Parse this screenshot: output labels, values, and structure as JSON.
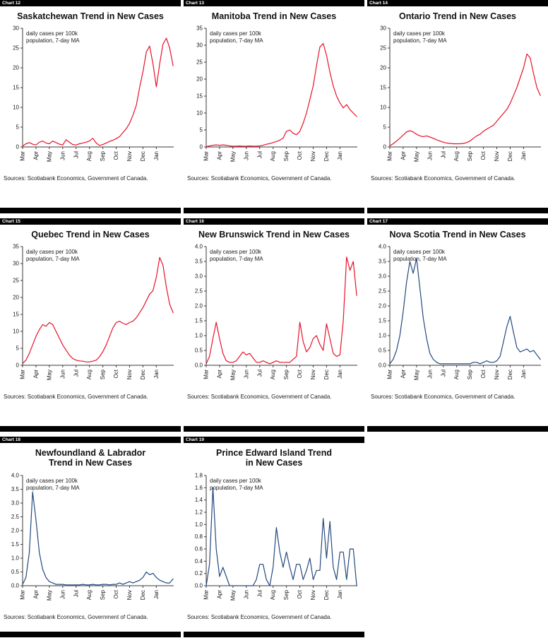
{
  "annotation": [
    "daily cases per 100k",
    "population, 7-day MA"
  ],
  "months": [
    "Mar",
    "Apr",
    "May",
    "Jun",
    "Jul",
    "Aug",
    "Sep",
    "Oct",
    "Nov",
    "Dec",
    "Jan"
  ],
  "colors": {
    "red": "#e8112a",
    "blue": "#24487f"
  },
  "chart_data": [
    {
      "type": "line",
      "chart_label": "Chart 12",
      "title": "Saskatchewan Trend in New Cases",
      "annotation": [
        "daily cases per 100k",
        "population, 7-day MA"
      ],
      "sources": "Sources: Scotiabank Economics, Government of Canada.",
      "color": "#e8112a",
      "ylim": [
        0,
        30
      ],
      "yticks": [
        0,
        5,
        10,
        15,
        20,
        25,
        30
      ],
      "ytick_labels": [
        "0",
        "5",
        "10",
        "15",
        "20",
        "25",
        "30"
      ],
      "x_months": [
        "Mar",
        "Apr",
        "May",
        "Jun",
        "Jul",
        "Aug",
        "Sep",
        "Oct",
        "Nov",
        "Dec",
        "Jan"
      ],
      "x_range": [
        0,
        11.3
      ],
      "x_start": 0,
      "x_step": 0.25,
      "values": [
        0.2,
        0.8,
        1.1,
        0.7,
        0.5,
        1.2,
        1.5,
        1.0,
        0.8,
        1.5,
        1.1,
        0.7,
        0.5,
        1.8,
        1.2,
        0.6,
        0.5,
        0.8,
        1.0,
        1.2,
        1.5,
        2.2,
        1.0,
        0.4,
        0.6,
        1.0,
        1.4,
        1.7,
        2.1,
        2.6,
        3.6,
        4.6,
        6.0,
        8.0,
        10.5,
        15.0,
        19.0,
        24.0,
        25.5,
        21.0,
        15.2,
        21.0,
        26.0,
        27.5,
        25.0,
        20.5
      ]
    },
    {
      "type": "line",
      "chart_label": "Chart 13",
      "title": "Manitoba Trend in New Cases",
      "annotation": [
        "daily cases per 100k",
        "population, 7-day MA"
      ],
      "sources": "Sources: Scotiabank Economics, Government of Canada.",
      "color": "#e8112a",
      "ylim": [
        0,
        35
      ],
      "yticks": [
        0,
        5,
        10,
        15,
        20,
        25,
        30,
        35
      ],
      "ytick_labels": [
        "0",
        "5",
        "10",
        "15",
        "20",
        "25",
        "30",
        "35"
      ],
      "x_months": [
        "Mar",
        "Apr",
        "May",
        "Jun",
        "Jul",
        "Aug",
        "Sep",
        "Oct",
        "Nov",
        "Dec",
        "Jan"
      ],
      "x_range": [
        0,
        11.3
      ],
      "x_start": 0,
      "x_step": 0.25,
      "values": [
        0.1,
        0.3,
        0.5,
        0.6,
        0.5,
        0.6,
        0.5,
        0.3,
        0.2,
        0.2,
        0.3,
        0.2,
        0.2,
        0.3,
        0.2,
        0.2,
        0.3,
        0.5,
        0.8,
        1.0,
        1.3,
        1.6,
        2.0,
        2.6,
        4.6,
        5.0,
        4.0,
        3.6,
        4.6,
        7.0,
        10.0,
        14.0,
        18.0,
        24.0,
        29.5,
        30.5,
        27.0,
        22.0,
        18.0,
        15.0,
        13.0,
        11.5,
        12.5,
        11.0,
        10.0,
        9.0
      ]
    },
    {
      "type": "line",
      "chart_label": "Chart 14",
      "title": "Ontario Trend in New Cases",
      "annotation": [
        "daily cases per 100k",
        "population, 7-day MA"
      ],
      "sources": "Sources: Scotiabank Economics, Government of Canada.",
      "color": "#e8112a",
      "ylim": [
        0,
        30
      ],
      "yticks": [
        0,
        5,
        10,
        15,
        20,
        25,
        30
      ],
      "ytick_labels": [
        "0",
        "5",
        "10",
        "15",
        "20",
        "25",
        "30"
      ],
      "x_months": [
        "Mar",
        "Apr",
        "May",
        "Jun",
        "Jul",
        "Aug",
        "Sep",
        "Oct",
        "Nov",
        "Dec",
        "Jan"
      ],
      "x_range": [
        0,
        11.3
      ],
      "x_start": 0,
      "x_step": 0.25,
      "values": [
        0.3,
        0.8,
        1.5,
        2.2,
        3.0,
        3.8,
        4.1,
        3.8,
        3.2,
        2.8,
        2.6,
        2.8,
        2.5,
        2.2,
        1.8,
        1.5,
        1.2,
        1.0,
        0.9,
        0.8,
        0.8,
        0.8,
        0.9,
        1.1,
        1.5,
        2.2,
        2.8,
        3.2,
        4.0,
        4.5,
        5.0,
        5.5,
        6.5,
        7.5,
        8.5,
        9.5,
        11.0,
        13.0,
        15.0,
        17.5,
        20.0,
        23.5,
        22.5,
        18.5,
        15.0,
        13.0
      ]
    },
    {
      "type": "line",
      "chart_label": "Chart 15",
      "title": "Quebec Trend in New Cases",
      "annotation": [
        "daily cases per 100k",
        "population, 7-day MA"
      ],
      "sources": "Sources: Scotiabank Economics, Government of Canada.",
      "color": "#e8112a",
      "ylim": [
        0,
        35
      ],
      "yticks": [
        0,
        5,
        10,
        15,
        20,
        25,
        30,
        35
      ],
      "ytick_labels": [
        "0",
        "5",
        "10",
        "15",
        "20",
        "25",
        "30",
        "35"
      ],
      "x_months": [
        "Mar",
        "Apr",
        "May",
        "Jun",
        "Jul",
        "Aug",
        "Sep",
        "Oct",
        "Nov",
        "Dec",
        "Jan"
      ],
      "x_range": [
        0,
        11.3
      ],
      "x_start": 0,
      "x_step": 0.25,
      "values": [
        0.5,
        1.5,
        3.5,
        6.0,
        8.5,
        10.5,
        12.0,
        11.5,
        12.6,
        12.0,
        10.0,
        8.0,
        6.0,
        4.5,
        3.0,
        2.0,
        1.5,
        1.3,
        1.2,
        1.0,
        1.0,
        1.2,
        1.5,
        2.5,
        4.0,
        6.0,
        8.5,
        11.0,
        12.6,
        13.0,
        12.4,
        12.0,
        12.6,
        13.0,
        14.0,
        15.5,
        17.0,
        19.0,
        21.0,
        22.0,
        26.0,
        31.8,
        29.5,
        23.0,
        18.0,
        15.5
      ]
    },
    {
      "type": "line",
      "chart_label": "Chart 16",
      "title": "New Brunswick Trend in New Cases",
      "annotation": [
        "daily cases per 100k",
        "population, 7-day MA"
      ],
      "sources": "Sources: Scotiabank Economics, Government of Canada.",
      "color": "#e8112a",
      "ylim": [
        0,
        4.0
      ],
      "yticks": [
        0,
        0.5,
        1.0,
        1.5,
        2.0,
        2.5,
        3.0,
        3.5,
        4.0
      ],
      "ytick_labels": [
        "0.0",
        "0.5",
        "1.0",
        "1.5",
        "2.0",
        "2.5",
        "3.0",
        "3.5",
        "4.0"
      ],
      "x_months": [
        "Mar",
        "Apr",
        "May",
        "Jun",
        "Jul",
        "Aug",
        "Sep",
        "Oct",
        "Nov",
        "Dec",
        "Jan"
      ],
      "x_range": [
        0,
        11.3
      ],
      "x_start": 0,
      "x_step": 0.25,
      "values": [
        0.05,
        0.3,
        0.9,
        1.45,
        0.9,
        0.4,
        0.15,
        0.1,
        0.1,
        0.15,
        0.3,
        0.45,
        0.35,
        0.4,
        0.25,
        0.1,
        0.1,
        0.15,
        0.1,
        0.05,
        0.1,
        0.15,
        0.1,
        0.1,
        0.1,
        0.1,
        0.2,
        0.3,
        1.45,
        0.8,
        0.45,
        0.6,
        0.9,
        1.0,
        0.7,
        0.5,
        1.4,
        0.9,
        0.4,
        0.3,
        0.35,
        1.5,
        3.65,
        3.2,
        3.5,
        2.35
      ]
    },
    {
      "type": "line",
      "chart_label": "Chart 17",
      "title": "Nova Scotia Trend in New Cases",
      "annotation": [
        "daily cases per 100k",
        "population, 7-day MA"
      ],
      "sources": "Sources: Scotiabank Economics, Government of Canada.",
      "color": "#24487f",
      "ylim": [
        0,
        4.0
      ],
      "yticks": [
        0,
        0.5,
        1.0,
        1.5,
        2.0,
        2.5,
        3.0,
        3.5,
        4.0
      ],
      "ytick_labels": [
        "0.0",
        "0.5",
        "1.0",
        "1.5",
        "2.0",
        "2.5",
        "3.0",
        "3.5",
        "4.0"
      ],
      "x_months": [
        "Mar",
        "Apr",
        "May",
        "Jun",
        "Jul",
        "Aug",
        "Sep",
        "Oct",
        "Nov",
        "Dec",
        "Jan"
      ],
      "x_range": [
        0,
        11.3
      ],
      "x_start": 0,
      "x_step": 0.25,
      "values": [
        0.05,
        0.2,
        0.5,
        1.0,
        1.8,
        2.8,
        3.5,
        3.1,
        3.6,
        2.6,
        1.6,
        0.9,
        0.4,
        0.2,
        0.1,
        0.05,
        0.05,
        0.05,
        0.05,
        0.05,
        0.05,
        0.05,
        0.05,
        0.05,
        0.05,
        0.1,
        0.1,
        0.05,
        0.1,
        0.15,
        0.1,
        0.1,
        0.15,
        0.3,
        0.8,
        1.3,
        1.65,
        1.1,
        0.6,
        0.45,
        0.5,
        0.55,
        0.45,
        0.5,
        0.35,
        0.2
      ]
    },
    {
      "type": "line",
      "chart_label": "Chart 18",
      "title": "Newfoundland & Labrador Trend in New Cases",
      "annotation": [
        "daily cases per 100k",
        "population, 7-day MA"
      ],
      "sources": "Sources: Scotiabank Economics, Government of Canada.",
      "color": "#24487f",
      "ylim": [
        0,
        4.0
      ],
      "yticks": [
        0,
        0.5,
        1.0,
        1.5,
        2.0,
        2.5,
        3.0,
        3.5,
        4.0
      ],
      "ytick_labels": [
        "0.0",
        "0.5",
        "1.0",
        "1.5",
        "2.0",
        "2.5",
        "3.0",
        "3.5",
        "4.0"
      ],
      "x_months": [
        "Mar",
        "Apr",
        "May",
        "Jun",
        "Jul",
        "Aug",
        "Sep",
        "Oct",
        "Nov",
        "Dec",
        "Jan"
      ],
      "x_range": [
        0,
        11.3
      ],
      "x_start": 0,
      "x_step": 0.25,
      "values": [
        0.05,
        0.3,
        1.2,
        3.4,
        2.4,
        1.2,
        0.6,
        0.3,
        0.15,
        0.1,
        0.05,
        0.05,
        0.05,
        0.03,
        0.03,
        0.03,
        0.03,
        0.03,
        0.05,
        0.03,
        0.03,
        0.05,
        0.03,
        0.03,
        0.05,
        0.05,
        0.03,
        0.05,
        0.05,
        0.1,
        0.05,
        0.1,
        0.15,
        0.1,
        0.15,
        0.2,
        0.3,
        0.5,
        0.4,
        0.45,
        0.3,
        0.2,
        0.15,
        0.1,
        0.1,
        0.25
      ]
    },
    {
      "type": "line",
      "chart_label": "Chart 19",
      "title": "Prince Edward Island Trend in New Cases",
      "annotation": [
        "daily cases per 100k",
        "population, 7-day MA"
      ],
      "sources": "Sources: Scotiabank Economics, Government of Canada.",
      "color": "#24487f",
      "ylim": [
        0,
        1.8
      ],
      "yticks": [
        0,
        0.2,
        0.4,
        0.6,
        0.8,
        1.0,
        1.2,
        1.4,
        1.6,
        1.8
      ],
      "ytick_labels": [
        "0.0",
        "0.2",
        "0.4",
        "0.6",
        "0.8",
        "1.0",
        "1.2",
        "1.4",
        "1.6",
        "1.8"
      ],
      "x_months": [
        "Mar",
        "Apr",
        "May",
        "Jun",
        "Jul",
        "Aug",
        "Sep",
        "Oct",
        "Nov",
        "Dec",
        "Jan"
      ],
      "x_range": [
        0,
        11.3
      ],
      "x_start": 0,
      "x_step": 0.25,
      "values": [
        0.0,
        0.35,
        1.6,
        0.6,
        0.15,
        0.3,
        0.15,
        0.0,
        0.0,
        0.0,
        0.0,
        0.0,
        0.0,
        0.0,
        0.0,
        0.1,
        0.35,
        0.35,
        0.1,
        0.0,
        0.3,
        0.95,
        0.55,
        0.3,
        0.55,
        0.3,
        0.1,
        0.35,
        0.35,
        0.1,
        0.25,
        0.45,
        0.1,
        0.25,
        0.25,
        1.1,
        0.45,
        1.05,
        0.3,
        0.1,
        0.55,
        0.55,
        0.1,
        0.6,
        0.6,
        0.0
      ]
    }
  ]
}
